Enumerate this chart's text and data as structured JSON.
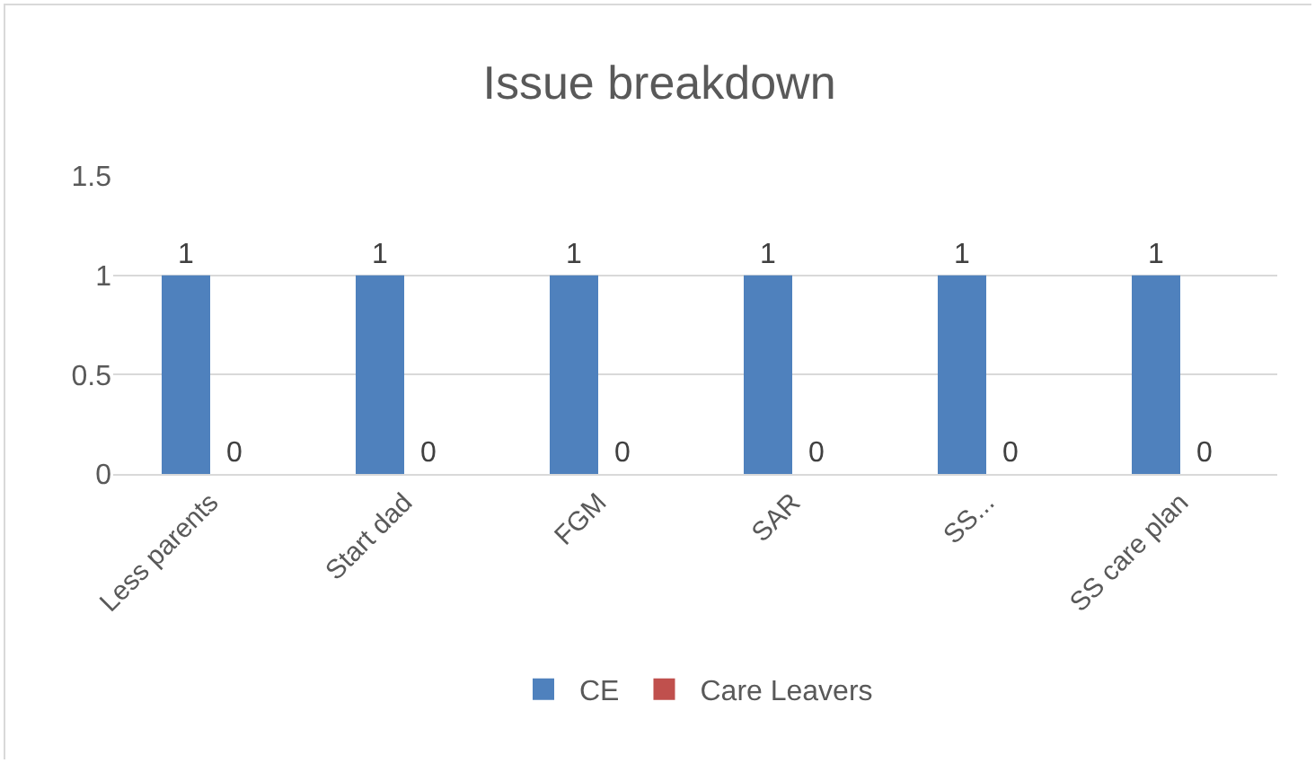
{
  "chart_data": {
    "type": "bar",
    "title": "Issue breakdown",
    "categories": [
      "Less parents",
      "Start dad",
      "FGM",
      "SAR",
      "SS...",
      "SS care plan"
    ],
    "series": [
      {
        "name": "CE",
        "color": "#4f81bd",
        "values": [
          1,
          1,
          1,
          1,
          1,
          1
        ]
      },
      {
        "name": "Care Leavers",
        "color": "#c0504d",
        "values": [
          0,
          0,
          0,
          0,
          0,
          0
        ]
      }
    ],
    "ylim": [
      0,
      1.5
    ],
    "yticks": [
      0,
      0.5,
      1,
      1.5
    ],
    "grid": "y",
    "legend": "bottom",
    "data_labels": true
  }
}
